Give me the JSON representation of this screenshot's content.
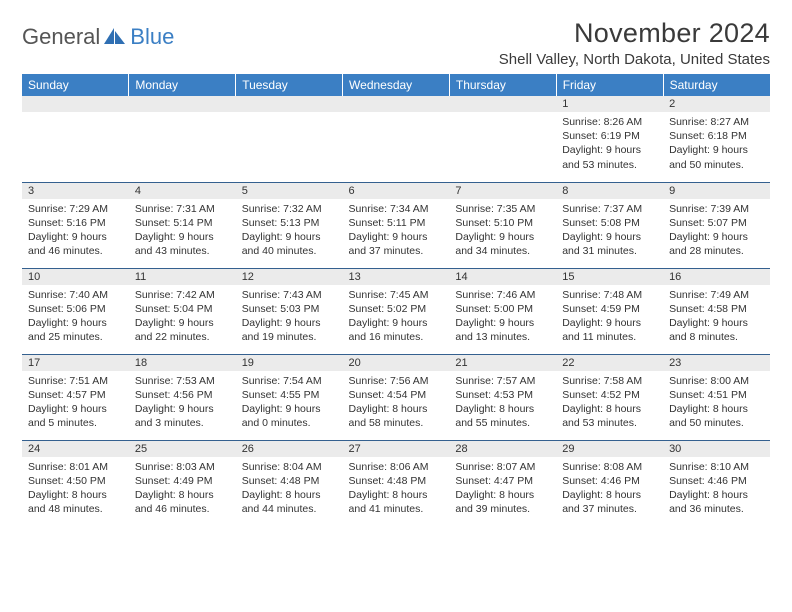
{
  "logo": {
    "text1": "General",
    "text2": "Blue"
  },
  "title": "November 2024",
  "location": "Shell Valley, North Dakota, United States",
  "style": {
    "header_bg": "#3b7fc4",
    "header_fg": "#ffffff",
    "row_border": "#34608f",
    "daynum_bg": "#ebebeb",
    "page_bg": "#ffffff",
    "text_color": "#333333",
    "title_fontsize": 27,
    "location_fontsize": 15,
    "weekday_fontsize": 12,
    "daynum_fontsize": 11,
    "body_fontsize": 10.5,
    "columns": 7,
    "rows": 5
  },
  "weekdays": [
    "Sunday",
    "Monday",
    "Tuesday",
    "Wednesday",
    "Thursday",
    "Friday",
    "Saturday"
  ],
  "weeks": [
    [
      {
        "num": "",
        "sunrise": "",
        "sunset": "",
        "daylight": ""
      },
      {
        "num": "",
        "sunrise": "",
        "sunset": "",
        "daylight": ""
      },
      {
        "num": "",
        "sunrise": "",
        "sunset": "",
        "daylight": ""
      },
      {
        "num": "",
        "sunrise": "",
        "sunset": "",
        "daylight": ""
      },
      {
        "num": "",
        "sunrise": "",
        "sunset": "",
        "daylight": ""
      },
      {
        "num": "1",
        "sunrise": "Sunrise: 8:26 AM",
        "sunset": "Sunset: 6:19 PM",
        "daylight": "Daylight: 9 hours and 53 minutes."
      },
      {
        "num": "2",
        "sunrise": "Sunrise: 8:27 AM",
        "sunset": "Sunset: 6:18 PM",
        "daylight": "Daylight: 9 hours and 50 minutes."
      }
    ],
    [
      {
        "num": "3",
        "sunrise": "Sunrise: 7:29 AM",
        "sunset": "Sunset: 5:16 PM",
        "daylight": "Daylight: 9 hours and 46 minutes."
      },
      {
        "num": "4",
        "sunrise": "Sunrise: 7:31 AM",
        "sunset": "Sunset: 5:14 PM",
        "daylight": "Daylight: 9 hours and 43 minutes."
      },
      {
        "num": "5",
        "sunrise": "Sunrise: 7:32 AM",
        "sunset": "Sunset: 5:13 PM",
        "daylight": "Daylight: 9 hours and 40 minutes."
      },
      {
        "num": "6",
        "sunrise": "Sunrise: 7:34 AM",
        "sunset": "Sunset: 5:11 PM",
        "daylight": "Daylight: 9 hours and 37 minutes."
      },
      {
        "num": "7",
        "sunrise": "Sunrise: 7:35 AM",
        "sunset": "Sunset: 5:10 PM",
        "daylight": "Daylight: 9 hours and 34 minutes."
      },
      {
        "num": "8",
        "sunrise": "Sunrise: 7:37 AM",
        "sunset": "Sunset: 5:08 PM",
        "daylight": "Daylight: 9 hours and 31 minutes."
      },
      {
        "num": "9",
        "sunrise": "Sunrise: 7:39 AM",
        "sunset": "Sunset: 5:07 PM",
        "daylight": "Daylight: 9 hours and 28 minutes."
      }
    ],
    [
      {
        "num": "10",
        "sunrise": "Sunrise: 7:40 AM",
        "sunset": "Sunset: 5:06 PM",
        "daylight": "Daylight: 9 hours and 25 minutes."
      },
      {
        "num": "11",
        "sunrise": "Sunrise: 7:42 AM",
        "sunset": "Sunset: 5:04 PM",
        "daylight": "Daylight: 9 hours and 22 minutes."
      },
      {
        "num": "12",
        "sunrise": "Sunrise: 7:43 AM",
        "sunset": "Sunset: 5:03 PM",
        "daylight": "Daylight: 9 hours and 19 minutes."
      },
      {
        "num": "13",
        "sunrise": "Sunrise: 7:45 AM",
        "sunset": "Sunset: 5:02 PM",
        "daylight": "Daylight: 9 hours and 16 minutes."
      },
      {
        "num": "14",
        "sunrise": "Sunrise: 7:46 AM",
        "sunset": "Sunset: 5:00 PM",
        "daylight": "Daylight: 9 hours and 13 minutes."
      },
      {
        "num": "15",
        "sunrise": "Sunrise: 7:48 AM",
        "sunset": "Sunset: 4:59 PM",
        "daylight": "Daylight: 9 hours and 11 minutes."
      },
      {
        "num": "16",
        "sunrise": "Sunrise: 7:49 AM",
        "sunset": "Sunset: 4:58 PM",
        "daylight": "Daylight: 9 hours and 8 minutes."
      }
    ],
    [
      {
        "num": "17",
        "sunrise": "Sunrise: 7:51 AM",
        "sunset": "Sunset: 4:57 PM",
        "daylight": "Daylight: 9 hours and 5 minutes."
      },
      {
        "num": "18",
        "sunrise": "Sunrise: 7:53 AM",
        "sunset": "Sunset: 4:56 PM",
        "daylight": "Daylight: 9 hours and 3 minutes."
      },
      {
        "num": "19",
        "sunrise": "Sunrise: 7:54 AM",
        "sunset": "Sunset: 4:55 PM",
        "daylight": "Daylight: 9 hours and 0 minutes."
      },
      {
        "num": "20",
        "sunrise": "Sunrise: 7:56 AM",
        "sunset": "Sunset: 4:54 PM",
        "daylight": "Daylight: 8 hours and 58 minutes."
      },
      {
        "num": "21",
        "sunrise": "Sunrise: 7:57 AM",
        "sunset": "Sunset: 4:53 PM",
        "daylight": "Daylight: 8 hours and 55 minutes."
      },
      {
        "num": "22",
        "sunrise": "Sunrise: 7:58 AM",
        "sunset": "Sunset: 4:52 PM",
        "daylight": "Daylight: 8 hours and 53 minutes."
      },
      {
        "num": "23",
        "sunrise": "Sunrise: 8:00 AM",
        "sunset": "Sunset: 4:51 PM",
        "daylight": "Daylight: 8 hours and 50 minutes."
      }
    ],
    [
      {
        "num": "24",
        "sunrise": "Sunrise: 8:01 AM",
        "sunset": "Sunset: 4:50 PM",
        "daylight": "Daylight: 8 hours and 48 minutes."
      },
      {
        "num": "25",
        "sunrise": "Sunrise: 8:03 AM",
        "sunset": "Sunset: 4:49 PM",
        "daylight": "Daylight: 8 hours and 46 minutes."
      },
      {
        "num": "26",
        "sunrise": "Sunrise: 8:04 AM",
        "sunset": "Sunset: 4:48 PM",
        "daylight": "Daylight: 8 hours and 44 minutes."
      },
      {
        "num": "27",
        "sunrise": "Sunrise: 8:06 AM",
        "sunset": "Sunset: 4:48 PM",
        "daylight": "Daylight: 8 hours and 41 minutes."
      },
      {
        "num": "28",
        "sunrise": "Sunrise: 8:07 AM",
        "sunset": "Sunset: 4:47 PM",
        "daylight": "Daylight: 8 hours and 39 minutes."
      },
      {
        "num": "29",
        "sunrise": "Sunrise: 8:08 AM",
        "sunset": "Sunset: 4:46 PM",
        "daylight": "Daylight: 8 hours and 37 minutes."
      },
      {
        "num": "30",
        "sunrise": "Sunrise: 8:10 AM",
        "sunset": "Sunset: 4:46 PM",
        "daylight": "Daylight: 8 hours and 36 minutes."
      }
    ]
  ]
}
